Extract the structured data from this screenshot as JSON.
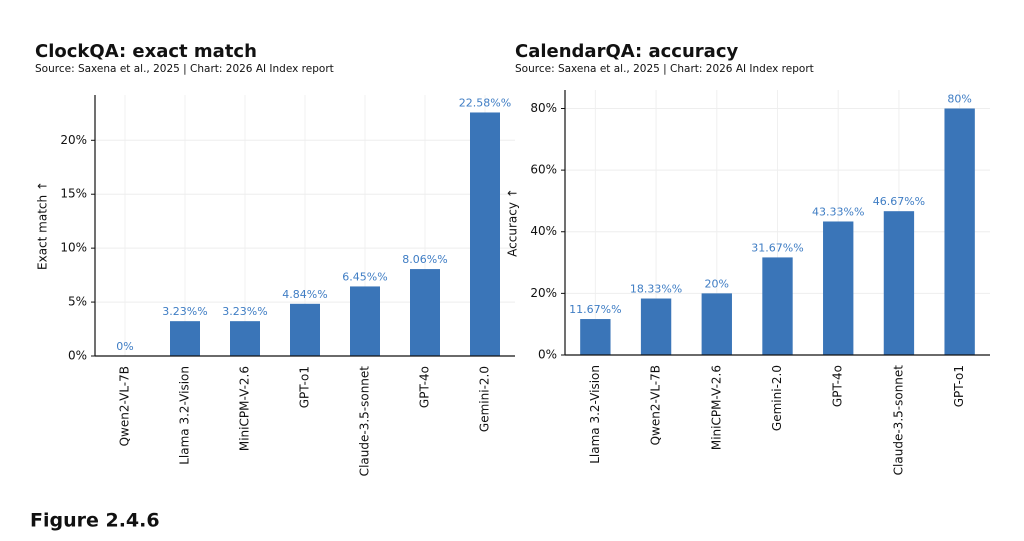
{
  "chart_data": [
    {
      "type": "bar",
      "title": "ClockQA: exact match",
      "subtitle": "Source: Saxena et al., 2025 | Chart: 2026 AI Index report",
      "y_label": "Exact match ↑",
      "categories": [
        "Qwen2-VL-7B",
        "Llama 3.2-Vision",
        "MiniCPM-V-2.6",
        "GPT-o1",
        "Claude-3.5-sonnet",
        "GPT-4o",
        "Gemini-2.0"
      ],
      "values": [
        0,
        3.23,
        3.23,
        4.84,
        6.45,
        8.06,
        22.58
      ],
      "value_labels": [
        "0%",
        "3.23%%",
        "3.23%%",
        "4.84%%",
        "6.45%%",
        "8.06%%",
        "22.58%%"
      ],
      "color": "#3a75b8",
      "ylim": [
        0,
        24.2
      ],
      "yticks": [
        {
          "value": 0,
          "label": "0%"
        },
        {
          "value": 5,
          "label": "5%"
        },
        {
          "value": 10,
          "label": "10%"
        },
        {
          "value": 15,
          "label": "15%"
        },
        {
          "value": 20,
          "label": "20%"
        }
      ],
      "grid": true
    },
    {
      "type": "bar",
      "title": "CalendarQA: accuracy",
      "subtitle": "Source: Saxena et al., 2025 | Chart: 2026 AI Index report",
      "y_label": "Accuracy ↑",
      "categories": [
        "Llama 3.2-Vision",
        "Qwen2-VL-7B",
        "MiniCPM-V-2.6",
        "Gemini-2.0",
        "GPT-4o",
        "Claude-3.5-sonnet",
        "GPT-o1"
      ],
      "values": [
        11.67,
        18.33,
        20,
        31.67,
        43.33,
        46.67,
        80
      ],
      "value_labels": [
        "11.67%%",
        "18.33%%",
        "20%",
        "31.67%%",
        "43.33%%",
        "46.67%%",
        "80%"
      ],
      "color": "#3a75b8",
      "ylim": [
        0,
        86
      ],
      "yticks": [
        {
          "value": 0,
          "label": "0%"
        },
        {
          "value": 20,
          "label": "20%"
        },
        {
          "value": 40,
          "label": "40%"
        },
        {
          "value": 60,
          "label": "60%"
        },
        {
          "value": 80,
          "label": "80%"
        }
      ],
      "grid": true
    }
  ],
  "caption": "Figure 2.4.6"
}
